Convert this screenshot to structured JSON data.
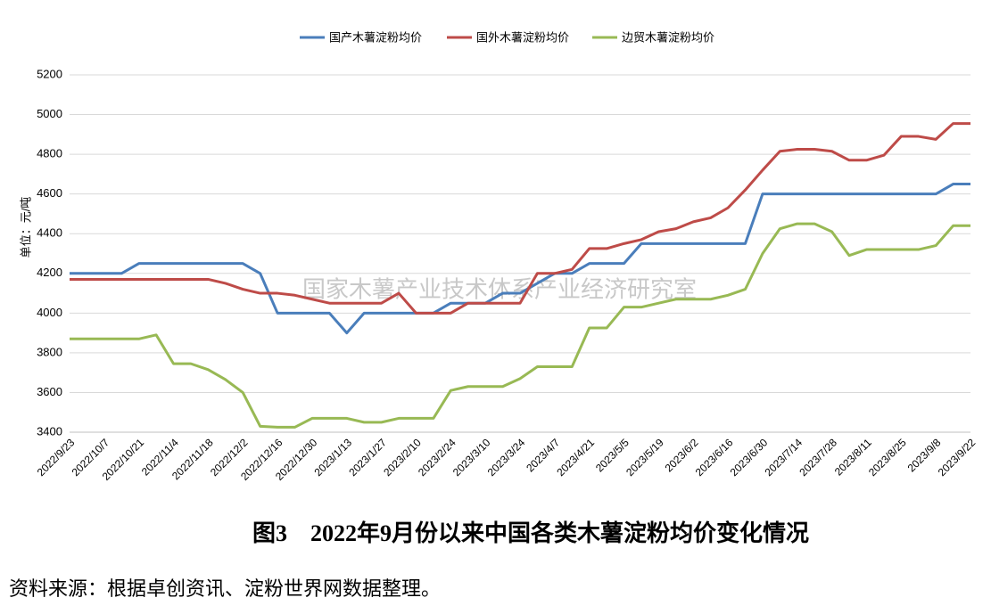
{
  "chart_data": {
    "type": "line",
    "title": "图3　2022年9月份以来中国各类木薯淀粉均价变化情况",
    "source": "资料来源：根据卓创资讯、淀粉世界网数据整理。",
    "watermark": "国家木薯产业技术体系产业经济研究室",
    "y_label": "单位：元/吨",
    "categories": [
      "2022/9/23",
      null,
      "2022/10/7",
      null,
      "2022/10/21",
      null,
      "2022/11/4",
      null,
      "2022/11/18",
      null,
      "2022/12/2",
      null,
      "2022/12/16",
      null,
      "2022/12/30",
      null,
      "2023/1/13",
      null,
      "2023/1/27",
      null,
      "2023/2/10",
      null,
      "2023/2/24",
      null,
      "2023/3/10",
      null,
      "2023/3/24",
      null,
      "2023/4/7",
      null,
      "2023/4/21",
      null,
      "2023/5/5",
      null,
      "2023/5/19",
      null,
      "2023/6/2",
      null,
      "2023/6/16",
      null,
      "2023/6/30",
      null,
      "2023/7/14",
      null,
      "2023/7/28",
      null,
      "2023/8/11",
      null,
      "2023/8/25",
      null,
      "2023/9/8",
      null,
      "2023/9/22"
    ],
    "series": [
      {
        "name": "国产木薯淀粉均价",
        "color": "#4a7ebb",
        "values": [
          4200,
          4200,
          4200,
          4200,
          4250,
          4250,
          4250,
          4250,
          4250,
          4250,
          4250,
          4200,
          4000,
          4000,
          4000,
          4000,
          3900,
          4000,
          4000,
          4000,
          4000,
          4000,
          4050,
          4050,
          4050,
          4100,
          4100,
          4150,
          4200,
          4200,
          4250,
          4250,
          4250,
          4350,
          4350,
          4350,
          4350,
          4350,
          4350,
          4350,
          4600,
          4600,
          4600,
          4600,
          4600,
          4600,
          4600,
          4600,
          4600,
          4600,
          4600,
          4650,
          4650
        ]
      },
      {
        "name": "国外木薯淀粉均价",
        "color": "#be4b48",
        "values": [
          4170,
          4170,
          4170,
          4170,
          4170,
          4170,
          4170,
          4170,
          4170,
          4150,
          4120,
          4100,
          4100,
          4090,
          4070,
          4050,
          4050,
          4050,
          4050,
          4100,
          4000,
          4000,
          4000,
          4050,
          4050,
          4050,
          4050,
          4200,
          4200,
          4220,
          4325,
          4325,
          4350,
          4370,
          4410,
          4425,
          4460,
          4480,
          4530,
          4620,
          4720,
          4815,
          4825,
          4825,
          4815,
          4770,
          4770,
          4795,
          4890,
          4890,
          4875,
          4955,
          4955
        ]
      },
      {
        "name": "边贸木薯淀粉均价",
        "color": "#98b954",
        "values": [
          3870,
          3870,
          3870,
          3870,
          3870,
          3890,
          3745,
          3745,
          3715,
          3665,
          3600,
          3430,
          3425,
          3425,
          3470,
          3470,
          3470,
          3450,
          3450,
          3470,
          3470,
          3470,
          3610,
          3630,
          3630,
          3630,
          3670,
          3730,
          3730,
          3730,
          3925,
          3925,
          4030,
          4030,
          4050,
          4070,
          4070,
          4070,
          4090,
          4120,
          4300,
          4425,
          4450,
          4450,
          4410,
          4290,
          4320,
          4320,
          4320,
          4320,
          4340,
          4440,
          4440
        ]
      }
    ],
    "ylim": [
      3400,
      5200
    ],
    "yticks": [
      3400,
      3600,
      3800,
      4000,
      4200,
      4400,
      4600,
      4800,
      5000,
      5200
    ],
    "grid": true,
    "legend": "top"
  }
}
